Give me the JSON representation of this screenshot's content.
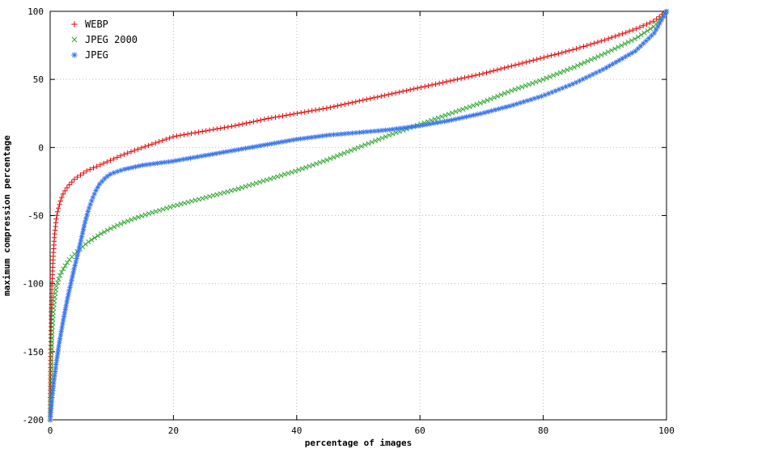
{
  "page": {
    "background": "#ffffff"
  },
  "chart_data": {
    "type": "scatter",
    "title": "",
    "xlabel": "percentage of images",
    "ylabel": "maximum compression percentage",
    "xlim": [
      0,
      100
    ],
    "ylim": [
      -200,
      100
    ],
    "xticks": [
      0,
      20,
      40,
      60,
      80,
      100
    ],
    "yticks": [
      100,
      50,
      0,
      -50,
      -100,
      -150,
      -200
    ],
    "grid": true,
    "grid_color": "#bbbbbb",
    "border_color": "#000000",
    "legend_position": "top-left",
    "series": [
      {
        "name": "WEBP",
        "marker": "plus",
        "color": "#e60000",
        "points": [
          [
            0,
            -200
          ],
          [
            0.1,
            -150
          ],
          [
            0.2,
            -120
          ],
          [
            0.3,
            -100
          ],
          [
            0.5,
            -80
          ],
          [
            0.7,
            -65
          ],
          [
            1,
            -52
          ],
          [
            1.3,
            -45
          ],
          [
            1.7,
            -39
          ],
          [
            2,
            -35
          ],
          [
            2.5,
            -31
          ],
          [
            3,
            -28
          ],
          [
            4,
            -23
          ],
          [
            5,
            -20
          ],
          [
            6,
            -17
          ],
          [
            7,
            -15
          ],
          [
            8,
            -13
          ],
          [
            10,
            -9
          ],
          [
            12,
            -5
          ],
          [
            15,
            0
          ],
          [
            20,
            8
          ],
          [
            25,
            12
          ],
          [
            30,
            16
          ],
          [
            35,
            21
          ],
          [
            40,
            25
          ],
          [
            45,
            29
          ],
          [
            50,
            34
          ],
          [
            55,
            39
          ],
          [
            60,
            44
          ],
          [
            65,
            49
          ],
          [
            70,
            54
          ],
          [
            75,
            60
          ],
          [
            80,
            66
          ],
          [
            85,
            72
          ],
          [
            90,
            79
          ],
          [
            95,
            87
          ],
          [
            98,
            93
          ],
          [
            100,
            100
          ]
        ]
      },
      {
        "name": "JPEG 2000",
        "marker": "cross",
        "color": "#2ea72e",
        "points": [
          [
            0,
            -200
          ],
          [
            0.1,
            -170
          ],
          [
            0.2,
            -150
          ],
          [
            0.3,
            -138
          ],
          [
            0.5,
            -122
          ],
          [
            0.7,
            -112
          ],
          [
            1,
            -102
          ],
          [
            1.5,
            -95
          ],
          [
            2,
            -90
          ],
          [
            3,
            -83
          ],
          [
            4,
            -78
          ],
          [
            5,
            -74
          ],
          [
            6,
            -70
          ],
          [
            7,
            -67
          ],
          [
            8,
            -64
          ],
          [
            10,
            -59
          ],
          [
            12,
            -55
          ],
          [
            15,
            -50
          ],
          [
            20,
            -43
          ],
          [
            25,
            -37
          ],
          [
            30,
            -31
          ],
          [
            35,
            -24
          ],
          [
            40,
            -17
          ],
          [
            45,
            -9
          ],
          [
            50,
            0
          ],
          [
            55,
            9
          ],
          [
            60,
            17
          ],
          [
            65,
            25
          ],
          [
            70,
            33
          ],
          [
            75,
            42
          ],
          [
            80,
            50
          ],
          [
            85,
            59
          ],
          [
            90,
            69
          ],
          [
            95,
            80
          ],
          [
            98,
            89
          ],
          [
            100,
            100
          ]
        ]
      },
      {
        "name": "JPEG",
        "marker": "asterisk",
        "color": "#3a76f0",
        "points": [
          [
            0,
            -200
          ],
          [
            0.3,
            -185
          ],
          [
            0.6,
            -172
          ],
          [
            1,
            -158
          ],
          [
            1.5,
            -143
          ],
          [
            2,
            -130
          ],
          [
            2.5,
            -118
          ],
          [
            3,
            -107
          ],
          [
            3.5,
            -97
          ],
          [
            4,
            -87
          ],
          [
            4.5,
            -78
          ],
          [
            5,
            -68
          ],
          [
            5.5,
            -58
          ],
          [
            6,
            -49
          ],
          [
            6.5,
            -42
          ],
          [
            7,
            -36
          ],
          [
            7.5,
            -31
          ],
          [
            8,
            -27
          ],
          [
            9,
            -22
          ],
          [
            10,
            -19
          ],
          [
            12,
            -16
          ],
          [
            15,
            -13
          ],
          [
            20,
            -10
          ],
          [
            25,
            -6
          ],
          [
            30,
            -2
          ],
          [
            35,
            2
          ],
          [
            40,
            6
          ],
          [
            45,
            9
          ],
          [
            50,
            11
          ],
          [
            55,
            13
          ],
          [
            60,
            16
          ],
          [
            65,
            20
          ],
          [
            70,
            25
          ],
          [
            75,
            31
          ],
          [
            80,
            38
          ],
          [
            85,
            47
          ],
          [
            90,
            58
          ],
          [
            95,
            71
          ],
          [
            98,
            84
          ],
          [
            100,
            100
          ]
        ]
      }
    ]
  }
}
